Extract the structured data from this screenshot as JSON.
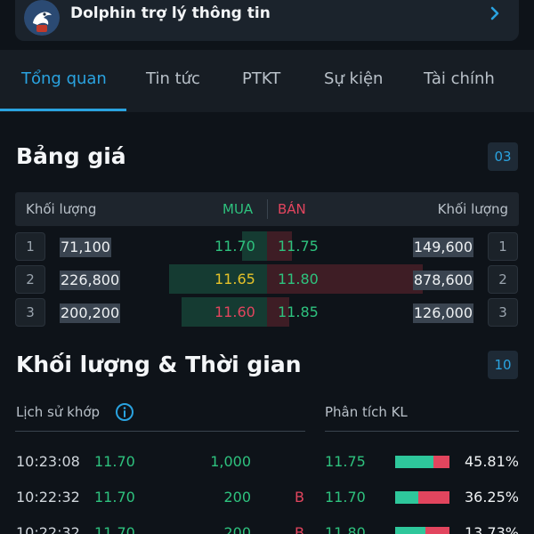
{
  "assistant": {
    "title": "Dolphin trợ lý thông tin",
    "avatar_icon": "dolphin-avatar-icon",
    "arrow_icon": "chevron-right-icon"
  },
  "tabs": [
    {
      "label": "Tổng quan",
      "active": true
    },
    {
      "label": "Tin tức"
    },
    {
      "label": "PTKT"
    },
    {
      "label": "Sự kiện"
    },
    {
      "label": "Tài chính"
    }
  ],
  "orderbook": {
    "title": "Bảng giá",
    "depth": "03",
    "header": {
      "bid_volume": "Khối lượng",
      "bid": "MUA",
      "ask": "BÁN",
      "ask_volume": "Khối lượng"
    },
    "rows": [
      {
        "level": "1",
        "bid_volume": "71,100",
        "bid_price": "11.70",
        "ask_price": "11.75",
        "ask_volume": "149,600",
        "level_right": "1",
        "bid_fill": 0.1,
        "ask_fill": 0.1
      },
      {
        "level": "2",
        "bid_volume": "226,800",
        "bid_price": "11.65",
        "ask_price": "11.80",
        "ask_volume": "878,600",
        "level_right": "2",
        "bid_fill": 0.39,
        "ask_fill": 0.62
      },
      {
        "level": "3",
        "bid_volume": "200,200",
        "bid_price": "11.60",
        "ask_price": "11.85",
        "ask_volume": "126,000",
        "level_right": "3",
        "bid_fill": 0.34,
        "ask_fill": 0.09
      }
    ]
  },
  "volume_time": {
    "title": "Khối lượng & Thời gian",
    "count": "10",
    "history_label": "Lịch sử khớp",
    "info_icon": "info-icon",
    "analysis_label": "Phân tích KL",
    "matches": [
      {
        "time": "10:23:08",
        "price": "11.70",
        "volume": "1,000",
        "side": ""
      },
      {
        "time": "10:22:32",
        "price": "11.70",
        "volume": "200",
        "side": "B"
      },
      {
        "time": "10:22:32",
        "price": "11.70",
        "volume": "200",
        "side": "B"
      }
    ],
    "analysis": [
      {
        "price": "11.75",
        "percent": "45.81%",
        "buy_share": 0.71
      },
      {
        "price": "11.70",
        "percent": "36.25%",
        "buy_share": 0.42
      },
      {
        "price": "11.80",
        "percent": "13.73%",
        "buy_share": 0.55
      }
    ]
  },
  "colors": {
    "accent": "#2aa3e0",
    "buy": "#2ec27e",
    "sell": "#e2455e",
    "reference": "#e6c229"
  }
}
